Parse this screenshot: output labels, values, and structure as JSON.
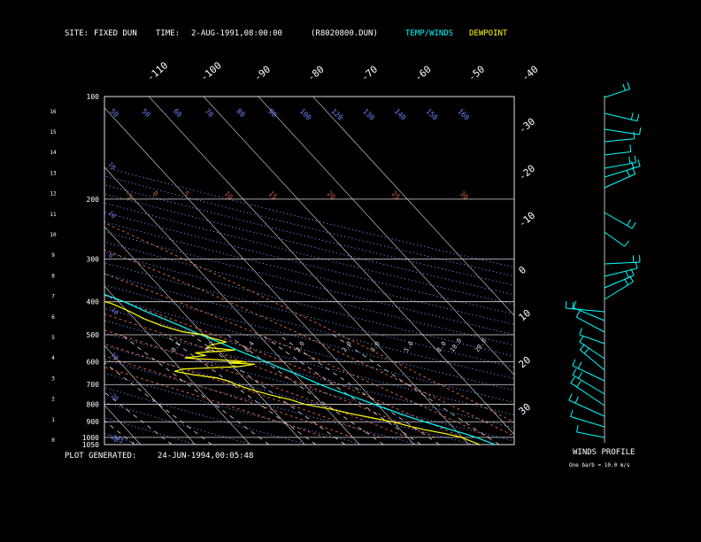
{
  "header": {
    "site_label": "SITE:",
    "site_value": "FIXED DUN",
    "time_label": "TIME:",
    "time_value": "2-AUG-1991,08:00:00",
    "file": "(R8020800.DUN)",
    "legend_temp": "TEMP/WINDS",
    "legend_dew": "DEWPOINT"
  },
  "footer": {
    "generated_label": "PLOT GENERATED:",
    "generated_value": "24-JUN-1994,00:05:48"
  },
  "winds": {
    "title": "WINDS PROFILE",
    "note": "One barb = 10.0 m/s"
  },
  "colors": {
    "temp": "#00ffff",
    "dew": "#ffff00",
    "isotherm": "#c0c0c0",
    "dry_adiabat": "#6f86ff",
    "moist_adiabat": "#d05a48",
    "mixing_ratio": "#d8d8d8"
  },
  "chart_data": {
    "type": "line",
    "pressure_levels": [
      "100",
      "200",
      "300",
      "400",
      "500",
      "600",
      "700",
      "800",
      "900",
      "1000",
      "1050"
    ],
    "height_ticks": [
      "0",
      "1",
      "2",
      "3",
      "4",
      "5",
      "6",
      "7",
      "8",
      "9",
      "10",
      "11",
      "12",
      "13",
      "14",
      "15",
      "16"
    ],
    "top_temp_labels": [
      "-110",
      "-100",
      "-90",
      "-80",
      "-70",
      "-60",
      "-50",
      "-40"
    ],
    "right_temp_labels": [
      "-30",
      "-20",
      "-10",
      "0",
      "10",
      "20",
      "30"
    ],
    "dry_adiabat_labels": [
      "50",
      "40",
      "30",
      "20",
      "10",
      "0",
      "-10",
      "-20",
      "-30"
    ],
    "theta_top_labels": [
      "50",
      "50",
      "60",
      "70",
      "80",
      "90",
      "100",
      "120",
      "130",
      "140",
      "150",
      "160"
    ],
    "theta_left_labels": [
      "10",
      "10",
      "0",
      "-10",
      "-10",
      "-20",
      "-30",
      "-35"
    ],
    "moist_labels": [
      "-5",
      "0",
      "5",
      "10",
      "15",
      "20",
      "25",
      "30"
    ],
    "mixing_labels": [
      "0.1",
      "0.2",
      "0.4",
      "1.0",
      "2.0",
      "3.0",
      "5.0",
      "8.0",
      "10.0",
      "20.0"
    ],
    "temperature": [
      [
        1050,
        24.8
      ],
      [
        1000,
        22.5
      ],
      [
        975,
        21.0
      ],
      [
        950,
        19.2
      ],
      [
        925,
        17.5
      ],
      [
        900,
        15.7
      ],
      [
        875,
        14.0
      ],
      [
        850,
        12.4
      ],
      [
        825,
        11.0
      ],
      [
        800,
        9.5
      ],
      [
        775,
        7.9
      ],
      [
        750,
        6.2
      ],
      [
        725,
        4.5
      ],
      [
        700,
        2.9
      ],
      [
        675,
        1.6
      ],
      [
        650,
        0.2
      ],
      [
        625,
        -1.6
      ],
      [
        600,
        -3.1
      ],
      [
        575,
        -4.9
      ],
      [
        550,
        -6.8
      ],
      [
        525,
        -8.5
      ],
      [
        500,
        -10.6
      ],
      [
        475,
        -12.4
      ],
      [
        450,
        -14.5
      ],
      [
        425,
        -16.9
      ],
      [
        400,
        -19.0
      ],
      [
        375,
        -22.1
      ],
      [
        350,
        -24.7
      ],
      [
        325,
        -27.8
      ],
      [
        300,
        -31.0
      ],
      [
        275,
        -34.5
      ],
      [
        250,
        -38.3
      ],
      [
        225,
        -42.6
      ],
      [
        200,
        -47.0
      ],
      [
        185,
        -49.5
      ],
      [
        170,
        -52.4
      ],
      [
        160,
        -54.1
      ],
      [
        150,
        -57.0
      ],
      [
        140,
        -58.7
      ],
      [
        130,
        -59.5
      ],
      [
        125,
        -62.0
      ],
      [
        115,
        -63.3
      ],
      [
        105,
        -65.9
      ],
      [
        100,
        -66.2
      ]
    ],
    "dewpoint": [
      [
        1050,
        22.0
      ],
      [
        1000,
        19.8
      ],
      [
        975,
        17.5
      ],
      [
        950,
        14.5
      ],
      [
        925,
        12.0
      ],
      [
        900,
        9.8
      ],
      [
        875,
        6.6
      ],
      [
        850,
        3.4
      ],
      [
        825,
        0.5
      ],
      [
        800,
        -3.2
      ],
      [
        775,
        -5.1
      ],
      [
        750,
        -8.0
      ],
      [
        725,
        -10.5
      ],
      [
        700,
        -12.5
      ],
      [
        685,
        -13.2
      ],
      [
        670,
        -14.8
      ],
      [
        655,
        -18.6
      ],
      [
        640,
        -21.5
      ],
      [
        630,
        -19.4
      ],
      [
        620,
        -8.8
      ],
      [
        610,
        -5.6
      ],
      [
        605,
        -10.2
      ],
      [
        600,
        -6.9
      ],
      [
        595,
        -9.2
      ],
      [
        585,
        -17.4
      ],
      [
        575,
        -13.1
      ],
      [
        565,
        -14.6
      ],
      [
        555,
        -6.9
      ],
      [
        545,
        -11.5
      ],
      [
        535,
        -10.3
      ],
      [
        525,
        -7.1
      ],
      [
        510,
        -9.3
      ],
      [
        500,
        -10.0
      ],
      [
        490,
        -13.4
      ],
      [
        470,
        -16.2
      ],
      [
        450,
        -18.1
      ],
      [
        425,
        -19.8
      ],
      [
        405,
        -21.6
      ],
      [
        390,
        -24.3
      ],
      [
        375,
        -30.1
      ],
      [
        362,
        -36.0
      ],
      [
        350,
        -43.2
      ],
      [
        335,
        -47.5
      ],
      [
        325,
        -49.3
      ],
      [
        315,
        -48.0
      ],
      [
        305,
        -51.6
      ],
      [
        298,
        -49.1
      ],
      [
        290,
        -53.8
      ],
      [
        280,
        -55.2
      ],
      [
        268,
        -53.4
      ],
      [
        255,
        -57.8
      ],
      [
        240,
        -59.6
      ],
      [
        225,
        -62.6
      ],
      [
        210,
        -66.4
      ],
      [
        200,
        -68.2
      ]
    ]
  }
}
